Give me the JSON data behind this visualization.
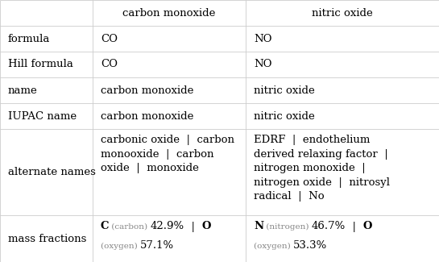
{
  "col_headers": [
    "",
    "carbon monoxide",
    "nitric oxide"
  ],
  "row_labels": [
    "formula",
    "Hill formula",
    "name",
    "IUPAC name",
    "alternate names",
    "mass fractions"
  ],
  "simple_data": {
    "formula": [
      "CO",
      "NO"
    ],
    "Hill formula": [
      "CO",
      "NO"
    ],
    "name": [
      "carbon monoxide",
      "nitric oxide"
    ],
    "IUPAC name": [
      "carbon monoxide",
      "nitric oxide"
    ]
  },
  "alt_co": "carbonic oxide  |  carbon\nmonooxide  |  carbon\noxide  |  monoxide",
  "alt_no": "EDRF  |  endothelium\nderived relaxing factor  |\nnitrogen monoxide  |\nnitrogen oxide  |  nitrosyl\nradical  |  No",
  "border_color": "#cccccc",
  "text_color": "#000000",
  "grey_color": "#888888",
  "header_fontsize": 9.5,
  "body_fontsize": 9.5,
  "small_fontsize": 7.5,
  "figwidth": 5.45,
  "figheight": 3.25,
  "dpi": 100
}
